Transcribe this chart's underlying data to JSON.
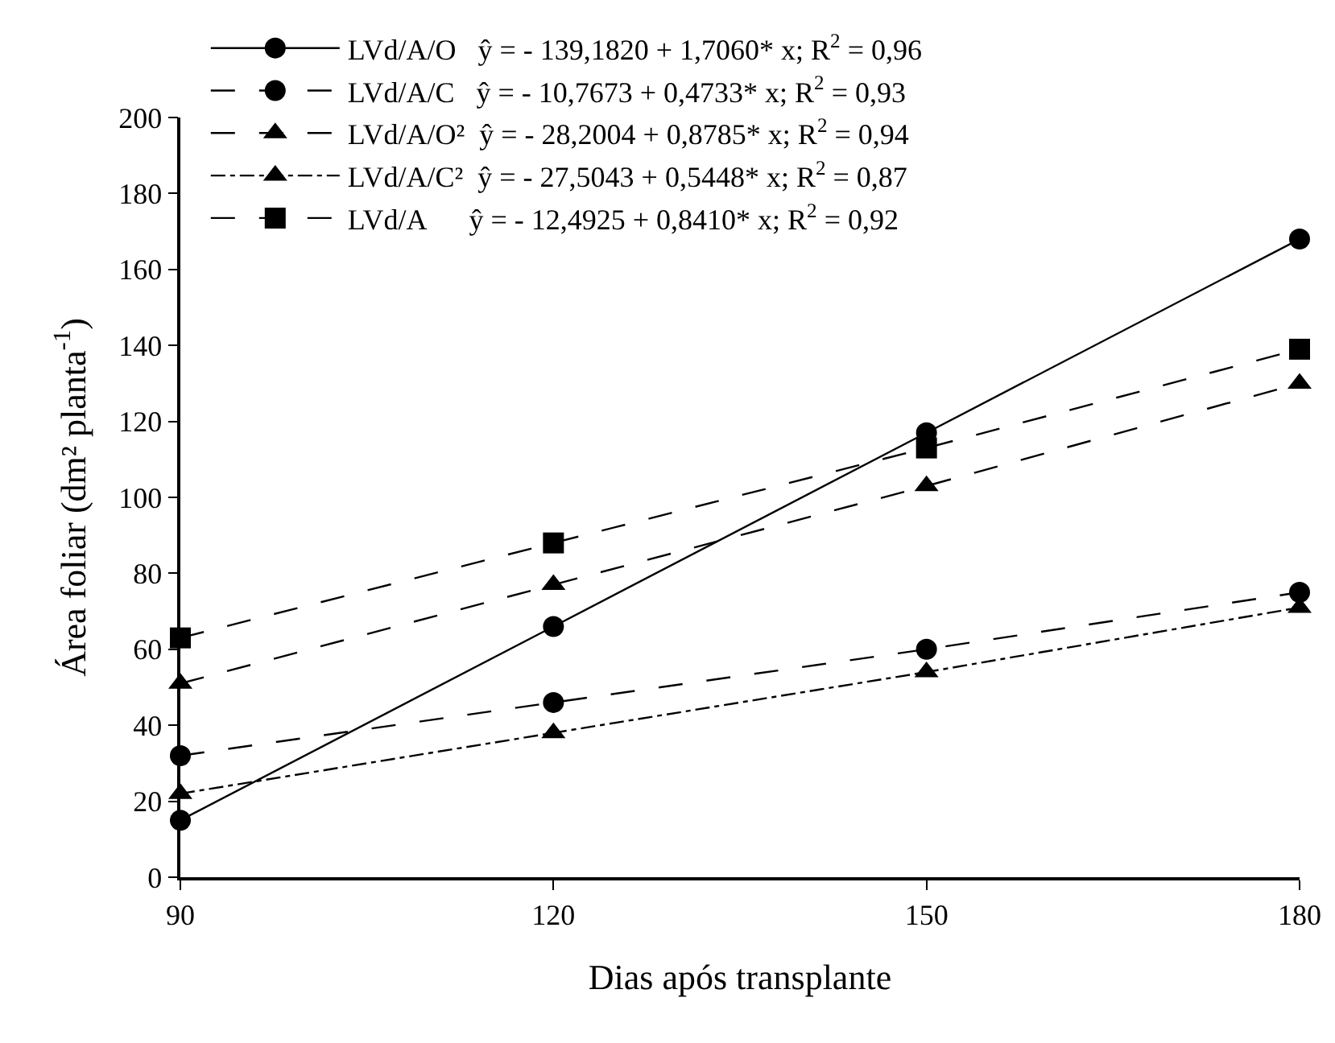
{
  "chart_data": {
    "type": "line",
    "xlabel": "Dias após transplante",
    "ylabel": "Área foliar (dm² planta$^{-1}$)",
    "x": [
      90,
      120,
      150,
      180
    ],
    "xlim": [
      90,
      180
    ],
    "xticks": [
      90,
      120,
      150,
      180
    ],
    "ylim": [
      0,
      200
    ],
    "yticks": [
      0,
      20,
      40,
      60,
      80,
      100,
      120,
      140,
      160,
      180,
      200
    ],
    "grid": false,
    "legend": "top",
    "series": [
      {
        "name": "LVd/A/O   ŷ = - 139,1820 + 1,7060* x; R$^{2}$ = 0,96",
        "color": "#000000",
        "marker": "circle",
        "line_style": "solid",
        "values": [
          15,
          66,
          117,
          168
        ]
      },
      {
        "name": "LVd/A/C   ŷ = - 10,7673 + 0,4733* x; R$^{2}$ = 0,93",
        "color": "#000000",
        "marker": "circle",
        "line_style": "dashed",
        "values": [
          32,
          46,
          60,
          75
        ]
      },
      {
        "name": "LVd/A/O²  ŷ = - 28,2004 + 0,8785* x; R$^{2}$ = 0,94",
        "color": "#000000",
        "marker": "triangle",
        "line_style": "dashed",
        "values": [
          51,
          77,
          103,
          130
        ]
      },
      {
        "name": "LVd/A/C²  ŷ = - 27,5043 + 0,5448* x; R$^{2}$ = 0,87",
        "color": "#000000",
        "marker": "triangle",
        "line_style": "dotted",
        "values": [
          22,
          38,
          54,
          71
        ]
      },
      {
        "name": "LVd/A      ŷ = - 12,4925 + 0,8410* x; R$^{2}$ = 0,92",
        "color": "#000000",
        "marker": "square",
        "line_style": "dashed",
        "values": [
          63,
          88,
          113,
          139
        ]
      }
    ]
  }
}
